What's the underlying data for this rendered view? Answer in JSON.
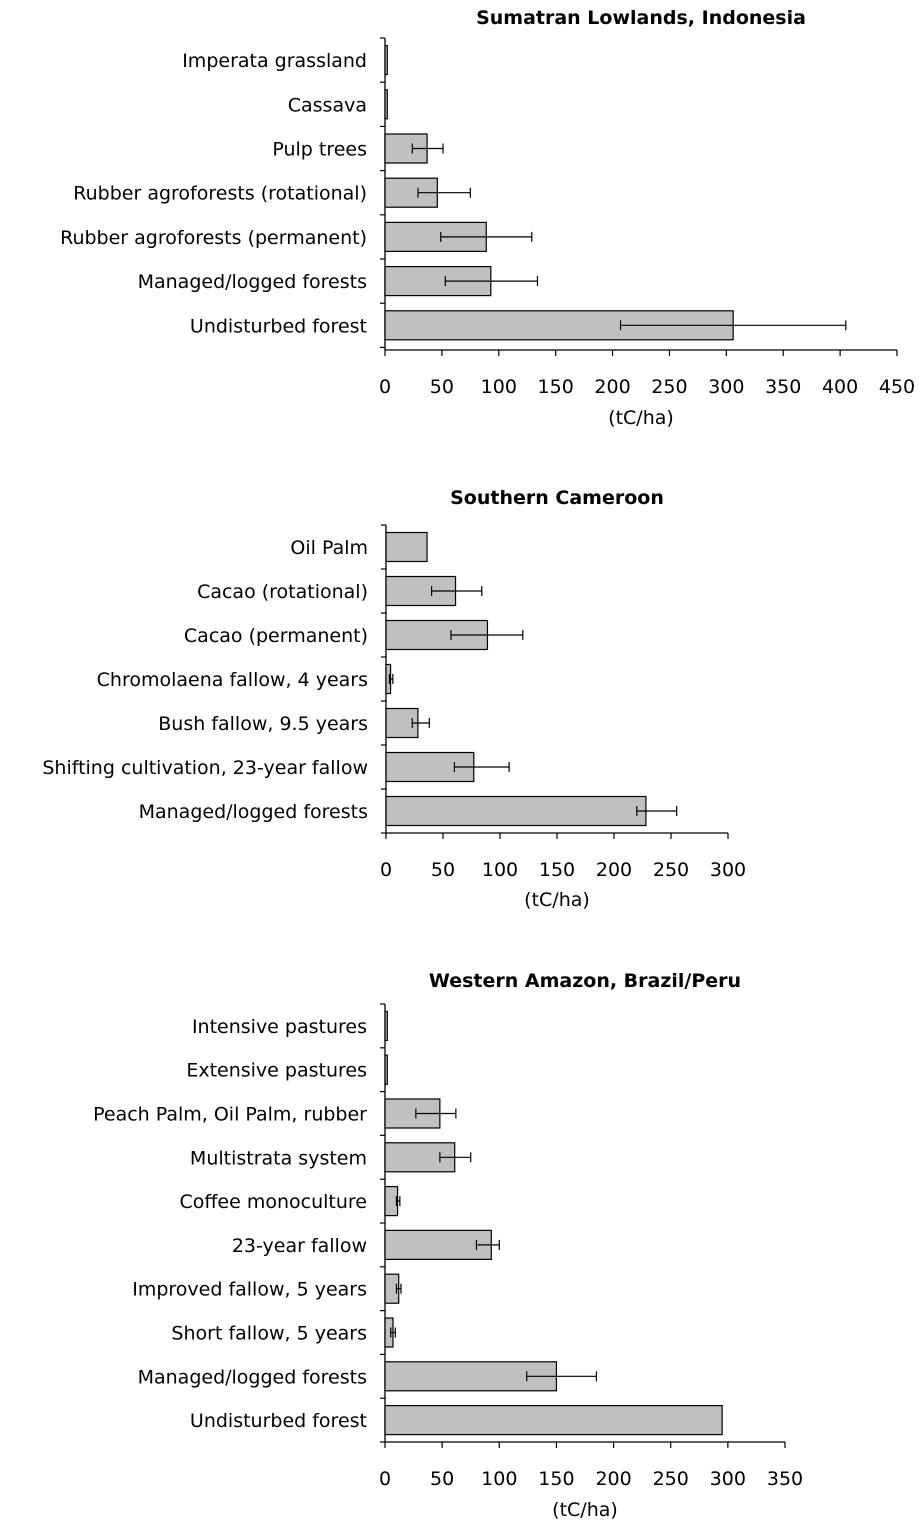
{
  "chart_data": [
    {
      "type": "bar",
      "orientation": "horizontal",
      "title": "Sumatran Lowlands, Indonesia",
      "xlabel": "(tC/ha)",
      "ylabel": "",
      "xlim": [
        0,
        450
      ],
      "x_ticks": [
        "0",
        "50",
        "100",
        "150",
        "200",
        "250",
        "300",
        "350",
        "400",
        "450"
      ],
      "grid": false,
      "categories": [
        "Imperata grassland",
        "Cassava",
        "Pulp trees",
        "Rubber agroforests (rotational)",
        "Rubber agroforests (permanent)",
        "Managed/logged forests",
        "Undisturbed forest"
      ],
      "values": [
        2,
        2,
        37,
        46,
        89,
        93,
        306
      ],
      "error_low": [
        null,
        null,
        24,
        29,
        49,
        53,
        207
      ],
      "error_high": [
        null,
        null,
        51,
        75,
        129,
        134,
        405
      ],
      "bar_color": "#c0c0c0"
    },
    {
      "type": "bar",
      "orientation": "horizontal",
      "title": "Southern Cameroon",
      "xlabel": "(tC/ha)",
      "ylabel": "",
      "xlim": [
        0,
        300
      ],
      "x_ticks": [
        "0",
        "50",
        "100",
        "150",
        "200",
        "250",
        "300"
      ],
      "grid": false,
      "categories": [
        "Oil Palm",
        "Cacao (rotational)",
        "Cacao (permanent)",
        "Chromolaena fallow, 4 years",
        "Bush fallow, 9.5 years",
        "Shifting cultivation, 23-year fallow",
        "Managed/logged forests"
      ],
      "values": [
        36,
        61,
        89,
        4,
        28,
        77,
        228
      ],
      "error_low": [
        null,
        40,
        57,
        3,
        23,
        60,
        220
      ],
      "error_high": [
        null,
        84,
        120,
        6,
        38,
        108,
        255
      ],
      "bar_color": "#c0c0c0"
    },
    {
      "type": "bar",
      "orientation": "horizontal",
      "title": "Western Amazon, Brazil/Peru",
      "xlabel": "(tC/ha)",
      "ylabel": "",
      "xlim": [
        0,
        350
      ],
      "x_ticks": [
        "0",
        "50",
        "100",
        "150",
        "200",
        "250",
        "300",
        "350"
      ],
      "grid": false,
      "categories": [
        "Intensive pastures",
        "Extensive pastures",
        "Peach Palm, Oil Palm, rubber",
        "Multistrata system",
        "Coffee monoculture",
        "23-year fallow",
        "Improved fallow, 5 years",
        "Short fallow, 5 years",
        "Managed/logged forests",
        "Undisturbed forest"
      ],
      "values": [
        2,
        2,
        48,
        61,
        11,
        93,
        12,
        7,
        150,
        295
      ],
      "error_low": [
        null,
        null,
        27,
        48,
        10,
        80,
        10,
        5,
        124,
        null
      ],
      "error_high": [
        null,
        null,
        62,
        75,
        13,
        100,
        14,
        9,
        185,
        null
      ],
      "bar_color": "#c0c0c0"
    }
  ]
}
